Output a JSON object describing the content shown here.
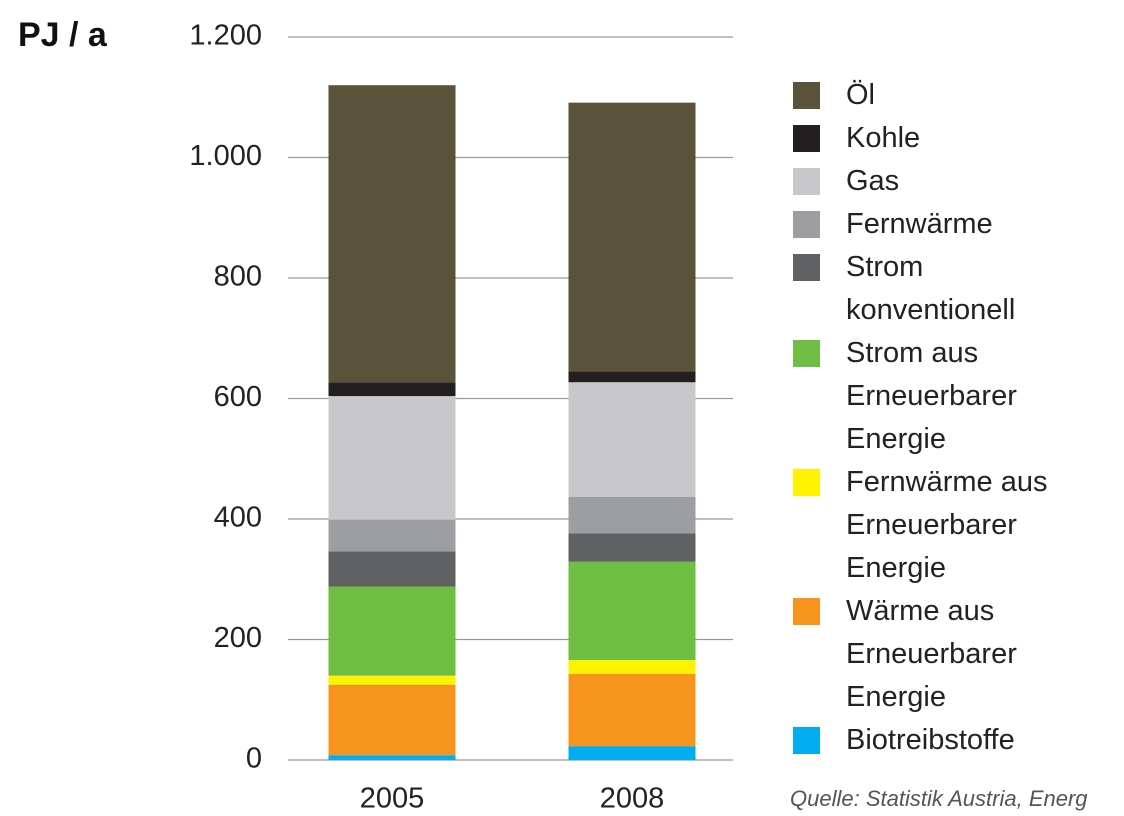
{
  "chart_data": {
    "type": "stacked_bar",
    "y_label": "PJ / a",
    "categories": [
      "2005",
      "2008"
    ],
    "series": [
      {
        "name": "Biotreibstoffe",
        "color": "#00aeef",
        "values": [
          8,
          23
        ]
      },
      {
        "name": "Wärme aus\nErneuerbarer\nEnergie",
        "color": "#f7941d",
        "values": [
          117,
          120
        ]
      },
      {
        "name": "Fernwärme aus\nErneuerbarer\nEnergie",
        "color": "#fff200",
        "values": [
          15,
          23
        ]
      },
      {
        "name": "Strom aus\nErneuerbarer\nEnergie",
        "color": "#6fbe44",
        "values": [
          148,
          163
        ]
      },
      {
        "name": "Strom\nkonventionell",
        "color": "#606163",
        "values": [
          58,
          47
        ]
      },
      {
        "name": "Fernwärme",
        "color": "#9d9ea1",
        "values": [
          53,
          61
        ]
      },
      {
        "name": "Gas",
        "color": "#c8c8ca",
        "values": [
          205,
          190
        ]
      },
      {
        "name": "Kohle",
        "color": "#231f20",
        "values": [
          23,
          18
        ]
      },
      {
        "name": "Öl",
        "color": "#5a533a",
        "values": [
          493,
          446
        ]
      }
    ],
    "ylim": [
      0,
      1200
    ],
    "yticks": [
      0,
      200,
      400,
      600,
      800,
      {
        "value": 1000,
        "label": "1.000"
      },
      {
        "value": 1200,
        "label": "1.200"
      }
    ],
    "grid": true,
    "source": "Quelle: Statistik Austria, Energ"
  }
}
